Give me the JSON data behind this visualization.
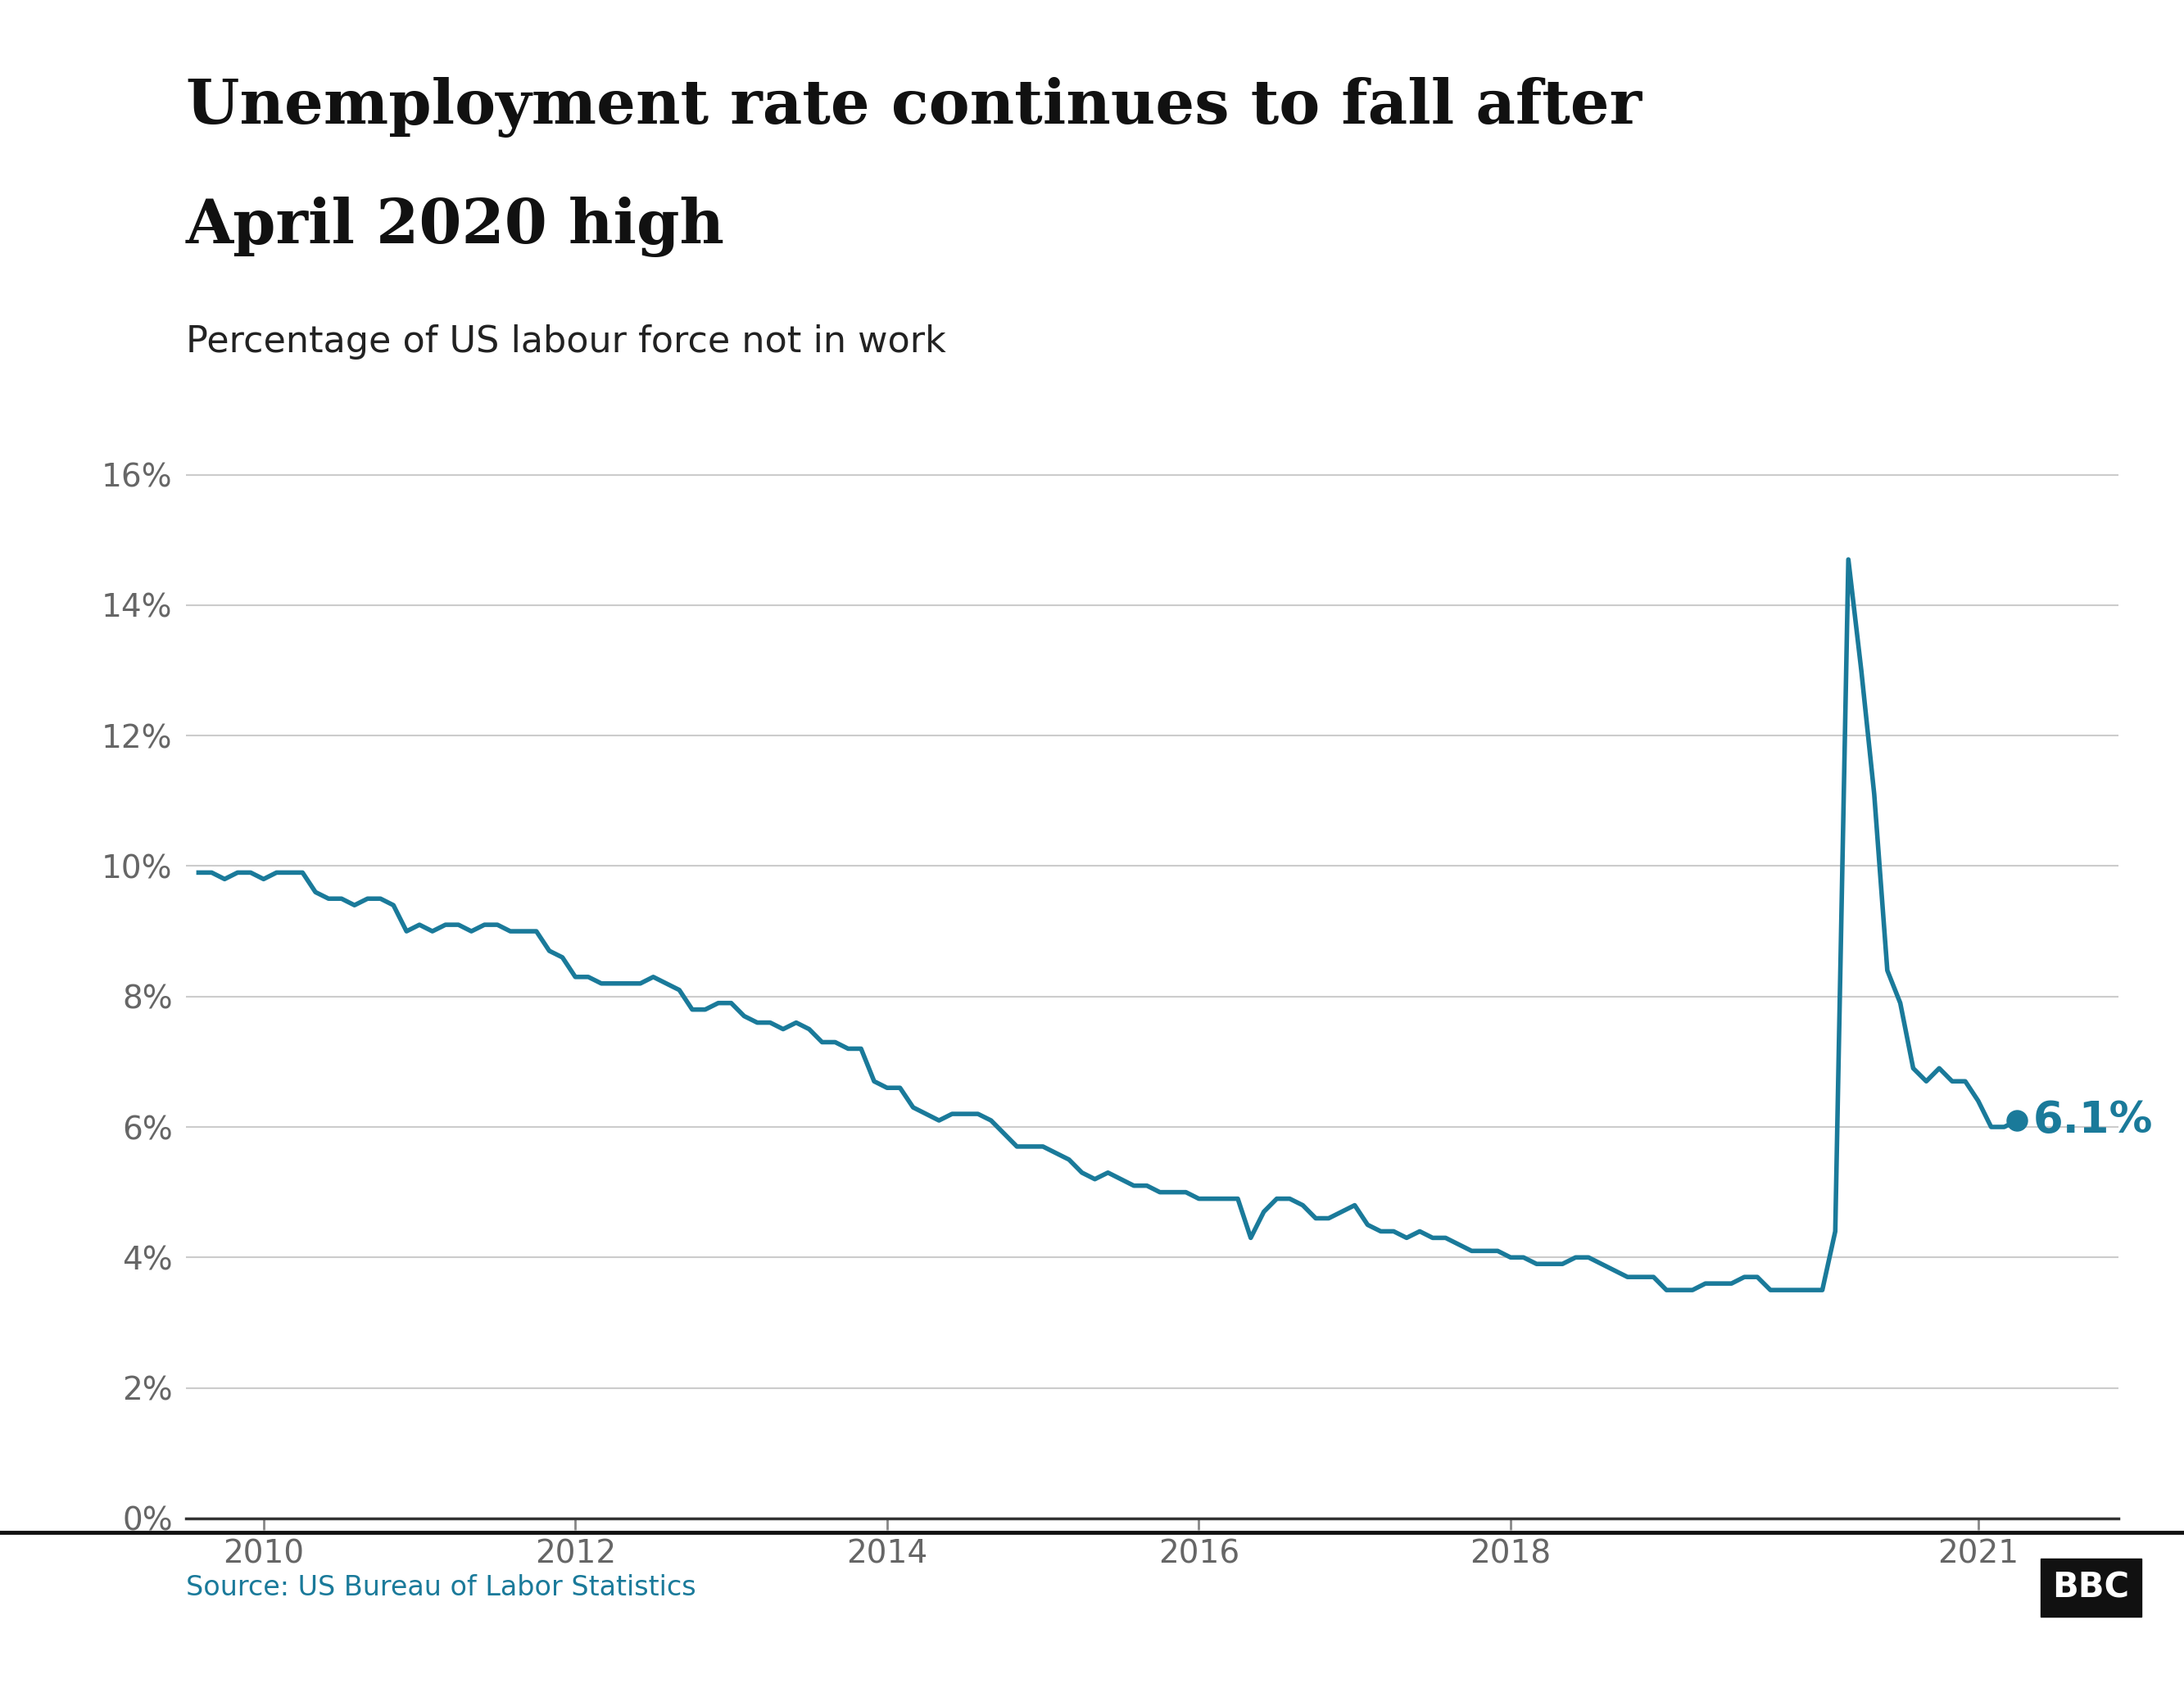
{
  "title_line1": "Unemployment rate continues to fall after",
  "title_line2": "April 2020 high",
  "subtitle": "Percentage of US labour force not in work",
  "source": "Source: US Bureau of Labor Statistics",
  "line_color": "#1a7a9a",
  "background_color": "#ffffff",
  "end_label": "6.1%",
  "end_label_color": "#1a7a9a",
  "yticks": [
    0,
    2,
    4,
    6,
    8,
    10,
    12,
    14,
    16
  ],
  "ytick_labels": [
    "0%",
    "2%",
    "4%",
    "6%",
    "8%",
    "10%",
    "12%",
    "14%",
    "16%"
  ],
  "xticks": [
    2010,
    2012,
    2014,
    2016,
    2018,
    2021
  ],
  "xlim": [
    2009.5,
    2021.9
  ],
  "ylim": [
    0,
    17
  ],
  "data": {
    "x": [
      2009.583,
      2009.667,
      2009.75,
      2009.833,
      2009.917,
      2010.0,
      2010.083,
      2010.167,
      2010.25,
      2010.333,
      2010.417,
      2010.5,
      2010.583,
      2010.667,
      2010.75,
      2010.833,
      2010.917,
      2011.0,
      2011.083,
      2011.167,
      2011.25,
      2011.333,
      2011.417,
      2011.5,
      2011.583,
      2011.667,
      2011.75,
      2011.833,
      2011.917,
      2012.0,
      2012.083,
      2012.167,
      2012.25,
      2012.333,
      2012.417,
      2012.5,
      2012.583,
      2012.667,
      2012.75,
      2012.833,
      2012.917,
      2013.0,
      2013.083,
      2013.167,
      2013.25,
      2013.333,
      2013.417,
      2013.5,
      2013.583,
      2013.667,
      2013.75,
      2013.833,
      2013.917,
      2014.0,
      2014.083,
      2014.167,
      2014.25,
      2014.333,
      2014.417,
      2014.5,
      2014.583,
      2014.667,
      2014.75,
      2014.833,
      2014.917,
      2015.0,
      2015.083,
      2015.167,
      2015.25,
      2015.333,
      2015.417,
      2015.5,
      2015.583,
      2015.667,
      2015.75,
      2015.833,
      2015.917,
      2016.0,
      2016.083,
      2016.167,
      2016.25,
      2016.333,
      2016.417,
      2016.5,
      2016.583,
      2016.667,
      2016.75,
      2016.833,
      2016.917,
      2017.0,
      2017.083,
      2017.167,
      2017.25,
      2017.333,
      2017.417,
      2017.5,
      2017.583,
      2017.667,
      2017.75,
      2017.833,
      2017.917,
      2018.0,
      2018.083,
      2018.167,
      2018.25,
      2018.333,
      2018.417,
      2018.5,
      2018.583,
      2018.667,
      2018.75,
      2018.833,
      2018.917,
      2019.0,
      2019.083,
      2019.167,
      2019.25,
      2019.333,
      2019.417,
      2019.5,
      2019.583,
      2019.667,
      2019.75,
      2019.833,
      2019.917,
      2020.0,
      2020.083,
      2020.167,
      2020.25,
      2020.333,
      2020.417,
      2020.5,
      2020.583,
      2020.667,
      2020.75,
      2020.833,
      2020.917,
      2021.0,
      2021.083,
      2021.167,
      2021.25
    ],
    "y": [
      9.9,
      9.9,
      9.8,
      9.9,
      9.9,
      9.8,
      9.9,
      9.9,
      9.9,
      9.6,
      9.5,
      9.5,
      9.4,
      9.5,
      9.5,
      9.4,
      9.0,
      9.1,
      9.0,
      9.1,
      9.1,
      9.0,
      9.1,
      9.1,
      9.0,
      9.0,
      9.0,
      8.7,
      8.6,
      8.3,
      8.3,
      8.2,
      8.2,
      8.2,
      8.2,
      8.3,
      8.2,
      8.1,
      7.8,
      7.8,
      7.9,
      7.9,
      7.7,
      7.6,
      7.6,
      7.5,
      7.6,
      7.5,
      7.3,
      7.3,
      7.2,
      7.2,
      6.7,
      6.6,
      6.6,
      6.3,
      6.2,
      6.1,
      6.2,
      6.2,
      6.2,
      6.1,
      5.9,
      5.7,
      5.7,
      5.7,
      5.6,
      5.5,
      5.3,
      5.2,
      5.3,
      5.2,
      5.1,
      5.1,
      5.0,
      5.0,
      5.0,
      4.9,
      4.9,
      4.9,
      4.9,
      4.3,
      4.7,
      4.9,
      4.9,
      4.8,
      4.6,
      4.6,
      4.7,
      4.8,
      4.5,
      4.4,
      4.4,
      4.3,
      4.4,
      4.3,
      4.3,
      4.2,
      4.1,
      4.1,
      4.1,
      4.0,
      4.0,
      3.9,
      3.9,
      3.9,
      4.0,
      4.0,
      3.9,
      3.8,
      3.7,
      3.7,
      3.7,
      3.5,
      3.5,
      3.5,
      3.6,
      3.6,
      3.6,
      3.7,
      3.7,
      3.5,
      3.5,
      3.5,
      3.5,
      3.5,
      4.4,
      14.7,
      13.0,
      11.1,
      8.4,
      7.9,
      6.9,
      6.7,
      6.9,
      6.7,
      6.7,
      6.4,
      6.0,
      6.0,
      6.1
    ]
  }
}
